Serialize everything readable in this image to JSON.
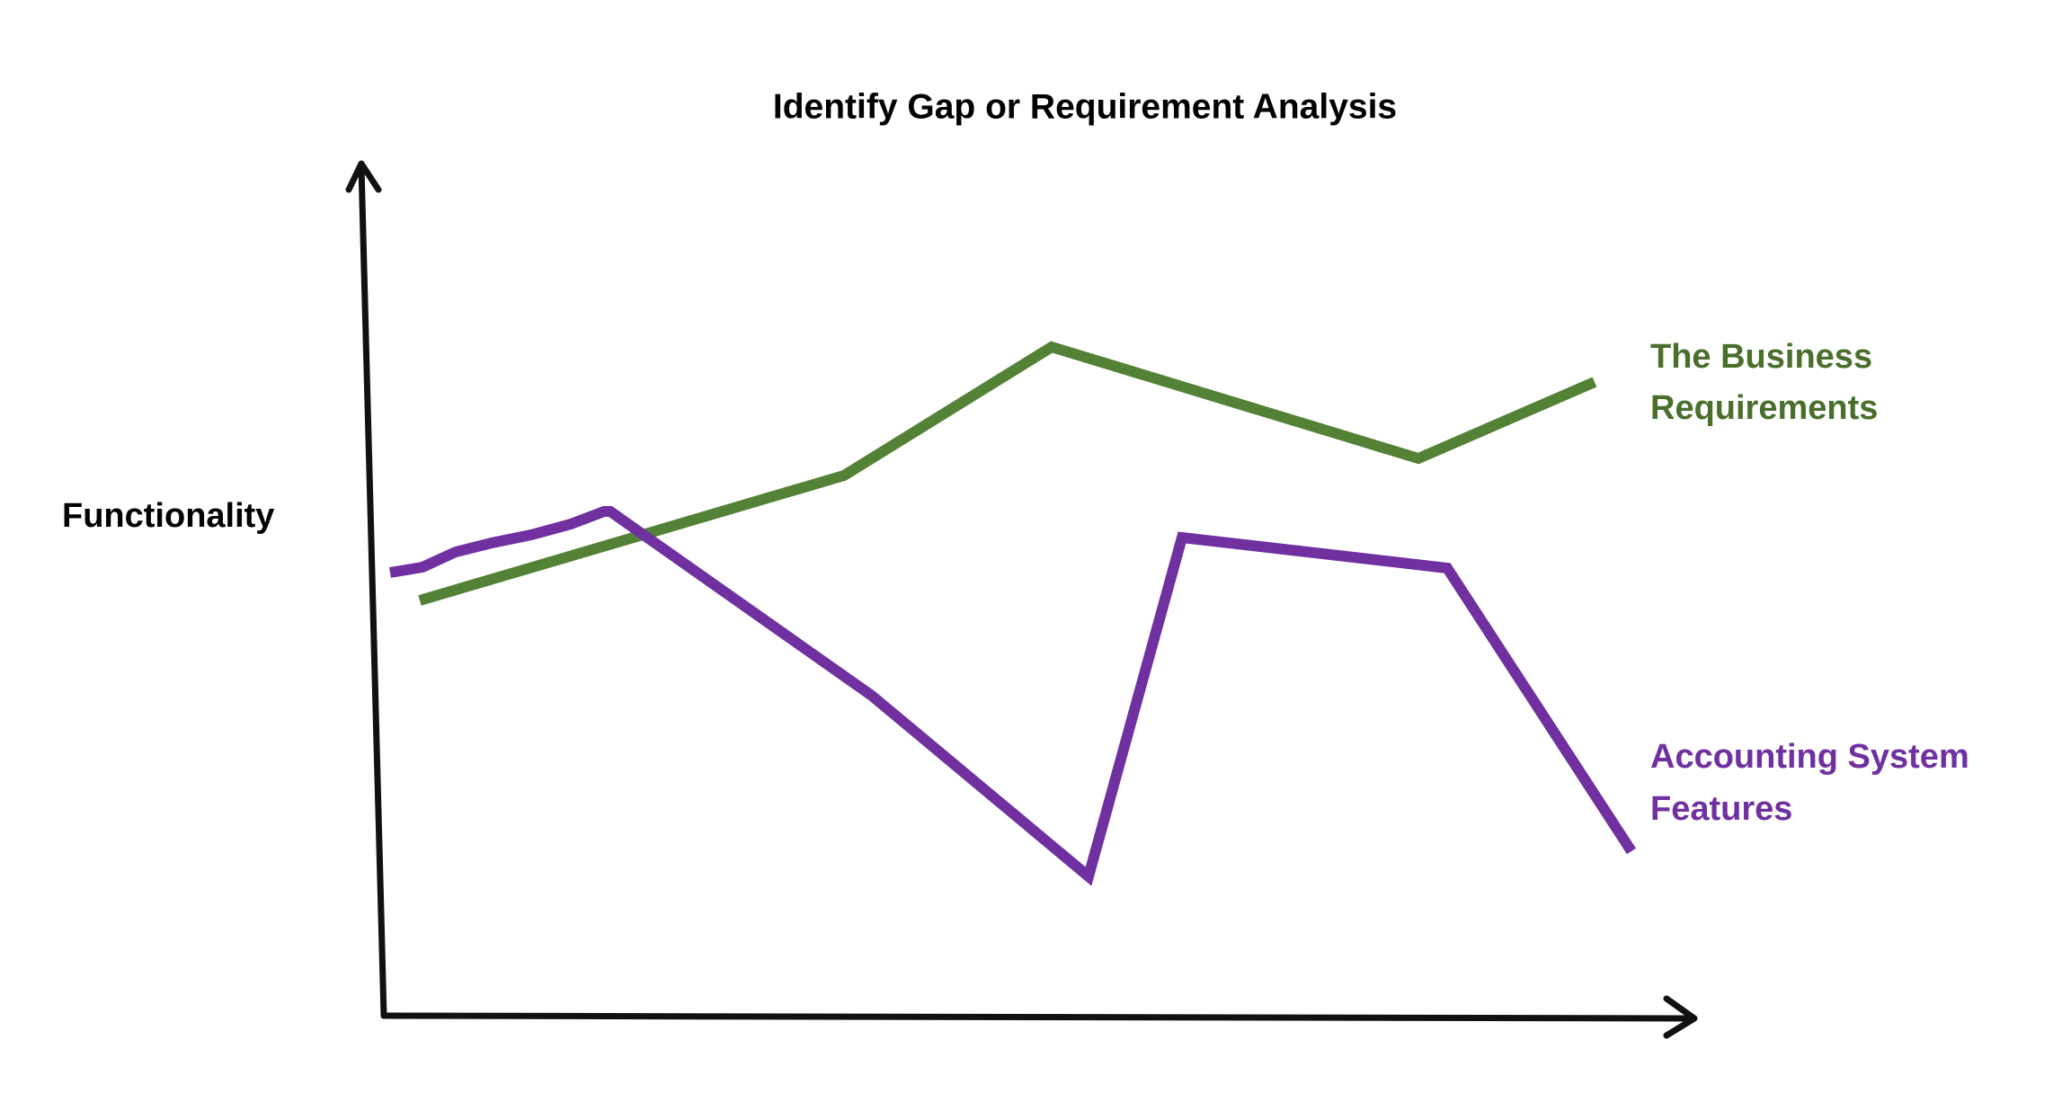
{
  "title": "Identify Gap or Requirement Analysis",
  "y_axis_label": "Functionality",
  "line_labels": [
    [
      "The Business",
      "Requirements"
    ],
    [
      "Accounting System",
      "Features"
    ]
  ]
}
